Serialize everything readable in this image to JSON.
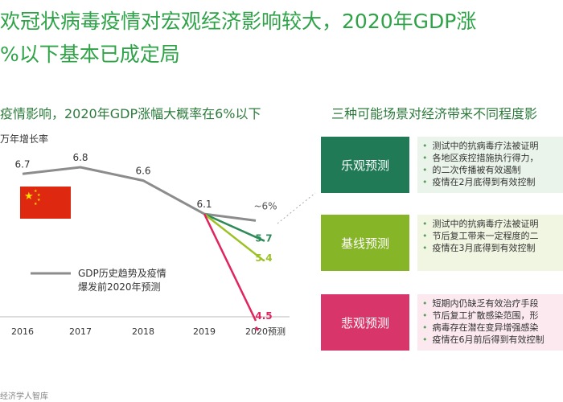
{
  "title": {
    "line1": "欢冠状病毒疫情对宏观经济影响较大，2020年GDP涨",
    "line2": "%以下基本已成定局"
  },
  "left_subtitle": "疫情影响，2020年GDP涨幅大概率在6%以下",
  "right_subtitle": "三种可能场景对经济带来不同程度影",
  "ylabel": "万年增长率",
  "source": "经济学人智库",
  "legend_text": [
    "GDP历史趋势及疫情",
    "爆发前2020年预测"
  ],
  "chart_data": {
    "type": "line",
    "categories": [
      "2016",
      "2017",
      "2018",
      "2019",
      "2020预测"
    ],
    "series": [
      {
        "name": "GDP历史趋势及疫情爆发前2020年预测",
        "color": "#8c8c8c",
        "values": [
          6.7,
          6.8,
          6.6,
          6.1,
          6.0
        ],
        "labels": [
          "6.7",
          "6.8",
          "6.6",
          "6.1",
          "~6%"
        ]
      },
      {
        "color": "#2e8b57",
        "values": [
          null,
          null,
          null,
          6.1,
          5.7
        ],
        "labels": [
          null,
          null,
          null,
          null,
          "5.7"
        ]
      },
      {
        "color": "#9dc225",
        "values": [
          null,
          null,
          null,
          6.1,
          5.4
        ],
        "labels": [
          null,
          null,
          null,
          null,
          "5.4"
        ]
      },
      {
        "color": "#e0245e",
        "values": [
          null,
          null,
          null,
          6.1,
          4.5
        ],
        "labels": [
          null,
          null,
          null,
          null,
          "4.5"
        ]
      }
    ]
  },
  "scenarios": [
    {
      "label": "乐观预测",
      "color": "#1f7a55",
      "panel_color": "#eaf4ea",
      "items": [
        "测试中的抗病毒疗法被证明",
        "各地区疾控措施执行得力，",
        "的二次传播被有效遏制",
        "疫情在2月底得到有效控制"
      ]
    },
    {
      "label": "基线预测",
      "color": "#86b528",
      "panel_color": "#f1f6e2",
      "items": [
        "测试中的抗病毒疗法被证明",
        "节后复工带来一定程度的二",
        "疫情在3月底得到有效控制"
      ]
    },
    {
      "label": "悲观预测",
      "color": "#d8366a",
      "panel_color": "#fbe9ef",
      "items": [
        "短期内仍缺乏有效治疗手段",
        "节后复工扩散感染范围，形",
        "病毒存在潜在变异增强感染",
        "疫情在6月前后得到有效控制"
      ]
    }
  ]
}
